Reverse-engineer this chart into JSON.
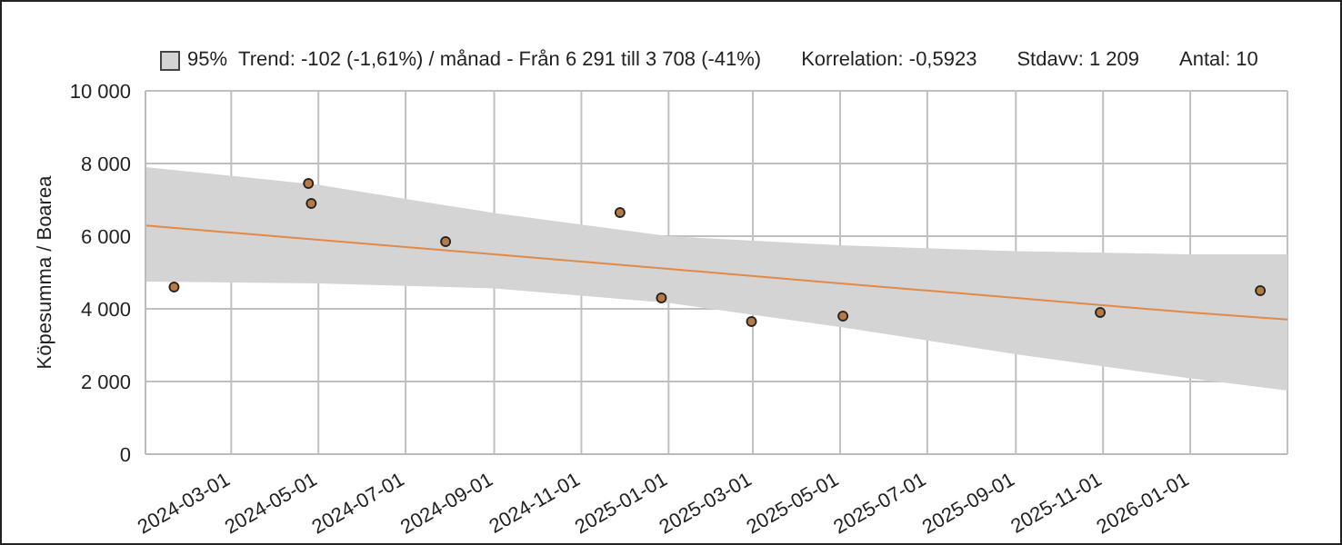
{
  "chart_data": {
    "type": "scatter",
    "ylabel": "Köpesumma / Boarea",
    "annotations": [
      "Trend: -102 (-1,61%) / månad  -  Från 6 291 till 3 708 (-41%)",
      "Korrelation: -0,5923",
      "Stdavv: 1 209",
      "Antal: 10"
    ],
    "x": [
      "2024-01-21",
      "2024-04-24",
      "2024-04-26",
      "2024-07-29",
      "2024-11-28",
      "2024-12-27",
      "2025-02-28",
      "2025-05-03",
      "2025-10-30",
      "2026-02-19"
    ],
    "series": [
      {
        "color": "#b87a44",
        "values": [
          4600,
          7450,
          6900,
          5850,
          6650,
          4300,
          3650,
          3800,
          3900,
          4500
        ]
      },
      {
        "type": "line",
        "name": "95%",
        "color": "#e08a4a",
        "x": [
          "2024-01-01",
          "2024-05-01",
          "2024-09-01",
          "2025-01-01",
          "2025-05-01",
          "2025-09-01",
          "2026-01-01",
          "2026-03-10"
        ],
        "marker": "none",
        "values": [
          6291,
          5900,
          5500,
          5100,
          4700,
          4300,
          3900,
          3708
        ],
        "lower": [
          4750,
          4700,
          4565,
          4165,
          3500,
          2750,
          2085,
          1750
        ],
        "upper": [
          7900,
          7415,
          6635,
          6000,
          5750,
          5585,
          5500,
          5500
        ]
      }
    ],
    "xlim": [
      "2024-01-01",
      "2026-03-10"
    ],
    "xticks": [
      "2024-03-01",
      "2024-05-01",
      "2024-07-01",
      "2024-09-01",
      "2024-11-01",
      "2025-01-01",
      "2025-03-01",
      "2025-05-01",
      "2025-07-01",
      "2025-09-01",
      "2025-11-01",
      "2026-01-01"
    ],
    "ylim": [
      0,
      10000
    ],
    "yticks": [
      {
        "value": 0,
        "label": "0"
      },
      {
        "value": 2000,
        "label": "2 000"
      },
      {
        "value": 4000,
        "label": "4 000"
      },
      {
        "value": 6000,
        "label": "6 000"
      },
      {
        "value": 8000,
        "label": "8 000"
      },
      {
        "value": 10000,
        "label": "10 000"
      }
    ],
    "grid": true,
    "legend": "top left",
    "marker": "circle"
  }
}
